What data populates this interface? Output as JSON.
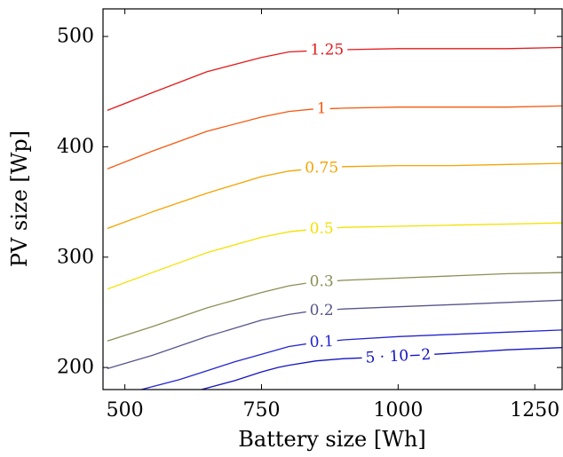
{
  "chart_data": {
    "type": "line",
    "xlabel": "Battery size [Wh]",
    "ylabel": "PV size [Wp]",
    "xlim": [
      460,
      1300
    ],
    "ylim": [
      180,
      525
    ],
    "xticks": [
      500,
      750,
      1000,
      1250
    ],
    "yticks": [
      200,
      300,
      400,
      500
    ],
    "grid": false,
    "series": [
      {
        "name": "1.25",
        "label": "1.25",
        "color": "#e41a1c",
        "label_x": 870,
        "label_rot": 0,
        "x": [
          468,
          550,
          650,
          750,
          800,
          840,
          900,
          1000,
          1100,
          1200,
          1300
        ],
        "y": [
          433,
          449,
          468,
          481,
          486,
          487,
          488,
          489,
          489,
          489,
          490
        ]
      },
      {
        "name": "1",
        "label": "1",
        "color": "#f4590f",
        "label_x": 860,
        "label_rot": 0,
        "x": [
          468,
          550,
          650,
          750,
          800,
          840,
          900,
          1000,
          1100,
          1200,
          1300
        ],
        "y": [
          380,
          396,
          414,
          427,
          432,
          434,
          435,
          436,
          436,
          436,
          437
        ]
      },
      {
        "name": "0.75",
        "label": "0.75",
        "color": "#f5a300",
        "label_x": 860,
        "label_rot": 0,
        "x": [
          468,
          550,
          650,
          750,
          800,
          840,
          900,
          1000,
          1100,
          1200,
          1300
        ],
        "y": [
          326,
          341,
          358,
          373,
          378,
          380,
          382,
          383,
          383,
          384,
          385
        ]
      },
      {
        "name": "0.5",
        "label": "0.5",
        "color": "#f2e100",
        "label_x": 860,
        "label_rot": 0,
        "x": [
          468,
          550,
          650,
          750,
          800,
          840,
          900,
          1000,
          1100,
          1200,
          1300
        ],
        "y": [
          271,
          286,
          304,
          318,
          323,
          325,
          327,
          328,
          329,
          330,
          331
        ]
      },
      {
        "name": "0.3",
        "label": "0.3",
        "color": "#8b8e55",
        "label_x": 860,
        "label_rot": 0,
        "x": [
          468,
          550,
          650,
          750,
          800,
          840,
          900,
          1000,
          1100,
          1200,
          1300
        ],
        "y": [
          224,
          237,
          254,
          268,
          274,
          277,
          279,
          281,
          283,
          285,
          286
        ]
      },
      {
        "name": "0.2",
        "label": "0.2",
        "color": "#56558c",
        "label_x": 860,
        "label_rot": 0,
        "x": [
          468,
          550,
          650,
          750,
          800,
          840,
          900,
          1000,
          1100,
          1200,
          1300
        ],
        "y": [
          199,
          211,
          228,
          243,
          248,
          251,
          253,
          255,
          257,
          259,
          261
        ]
      },
      {
        "name": "0.1",
        "label": "0.1",
        "color": "#2424d1",
        "label_x": 860,
        "label_rot": -2,
        "x": [
          530,
          600,
          650,
          700,
          750,
          800,
          840,
          900,
          1000,
          1100,
          1200,
          1300
        ],
        "y": [
          180,
          189,
          197,
          205,
          212,
          219,
          222,
          225,
          228,
          230,
          232,
          234
        ]
      },
      {
        "name": "5 · 10−2",
        "label": "5 · 10−2",
        "color": "#1414c2",
        "label_x": 1000,
        "label_rot": -3,
        "x": [
          640,
          700,
          750,
          780,
          800,
          850,
          900,
          1000,
          1100,
          1200,
          1300
        ],
        "y": [
          180,
          188,
          196,
          200,
          202,
          206,
          208,
          210,
          213,
          216,
          218
        ]
      }
    ]
  }
}
